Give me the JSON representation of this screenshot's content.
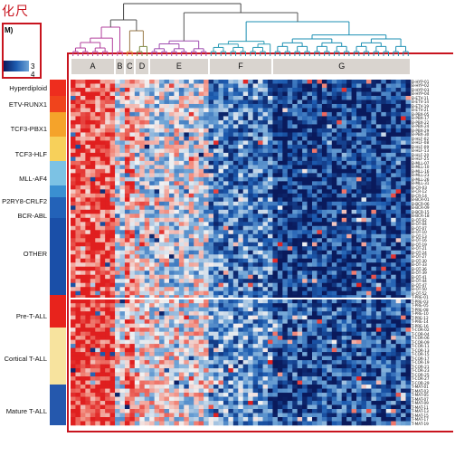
{
  "title": "化尺",
  "legend": {
    "unit": "M)",
    "ticks": "3  4"
  },
  "chart_data": {
    "type": "heatmap",
    "column_clusters": [
      "A",
      "B",
      "C",
      "D",
      "E",
      "F",
      "G"
    ],
    "column_cluster_counts": [
      9,
      2,
      2,
      3,
      12,
      13,
      28
    ],
    "row_groups": [
      {
        "name": "Hyperdiploid",
        "color": "#ee2d1e",
        "rows": 4
      },
      {
        "name": "ETV-RUNX1",
        "color": "#f0441c",
        "rows": 4
      },
      {
        "name": "TCF3-PBX1",
        "color": "#f5a32a",
        "rows": 6
      },
      {
        "name": "TCF3-HLF",
        "color": "#f7d05a",
        "rows": 6
      },
      {
        "name": "MLL-AF4",
        "color": "#7cc2e4",
        "rows": 6
      },
      {
        "name": "P2RY8-CRLF2",
        "color": "#3a8fd1",
        "rows": 3
      },
      {
        "name": "BCR-ABL",
        "color": "#2362b8",
        "rows": 5
      },
      {
        "name": "OTHER",
        "color": "#1a4fa8",
        "rows": 19
      },
      {
        "name": "Pre-T-ALL",
        "color": "#e8231c",
        "rows": 8
      },
      {
        "name": "Cortical T-ALL",
        "color": "#f7e39e",
        "rows": 14
      },
      {
        "name": "Mature T-ALL",
        "color": "#2558ad",
        "rows": 10
      }
    ],
    "row_separator_after": 59,
    "color_scale": [
      "#0a1a5c",
      "#1d5cb0",
      "#6fa4d6",
      "#f2f2f2",
      "#f28a7c",
      "#e01f1f"
    ],
    "sample_ids": [
      "B-HYP-01",
      "B-HYP-02",
      "B-HYP-03",
      "B-HYP-04",
      "B-ETV-11",
      "B-ETV-14",
      "B-ETV-19",
      "B-ETV-21",
      "B-PBX-05",
      "B-PBX-17",
      "B-PBX-22",
      "B-PBX-24",
      "B-PBX-29",
      "B-PBX-30",
      "B-HLF-02",
      "B-HLF-08",
      "B-HLF-09",
      "B-HLF-13",
      "B-HLF-20",
      "B-HLF-25",
      "B-MLL-07",
      "B-MLL-10",
      "B-MLL-16",
      "B-MLL-23",
      "B-MLL-26",
      "B-MLL-31",
      "B-CR-03",
      "B-CR-12",
      "B-CR-14",
      "B-BCR-01",
      "B-BCR-06",
      "B-BCR-09",
      "B-BCR-15",
      "B-BCR-18",
      "B-OT-02",
      "B-OT-04",
      "B-OT-07",
      "B-OT-10",
      "B-OT-13",
      "B-OT-16",
      "B-OT-19",
      "B-OT-21",
      "B-OT-24",
      "B-OT-27",
      "B-OT-30",
      "B-OT-33",
      "B-OT-36",
      "B-OT-39",
      "B-OT-41",
      "B-OT-44",
      "B-OT-47",
      "B-OT-50",
      "B-OT-52",
      "T-PRE-01",
      "T-PRE-03",
      "T-PRE-05",
      "T-PRE-08",
      "T-PRE-10",
      "T-PRE-12",
      "T-PRE-14",
      "T-PRE-16",
      "T-COR-02",
      "T-COR-04",
      "T-COR-06",
      "T-COR-09",
      "T-COR-11",
      "T-COR-13",
      "T-COR-15",
      "T-COR-17",
      "T-COR-19",
      "T-COR-21",
      "T-COR-23",
      "T-COR-25",
      "T-COR-27",
      "T-COR-29",
      "T-MAT-01",
      "T-MAT-03",
      "T-MAT-05",
      "T-MAT-07",
      "T-MAT-09",
      "T-MAT-11",
      "T-MAT-13",
      "T-MAT-15",
      "T-MAT-17",
      "T-MAT-19"
    ]
  }
}
